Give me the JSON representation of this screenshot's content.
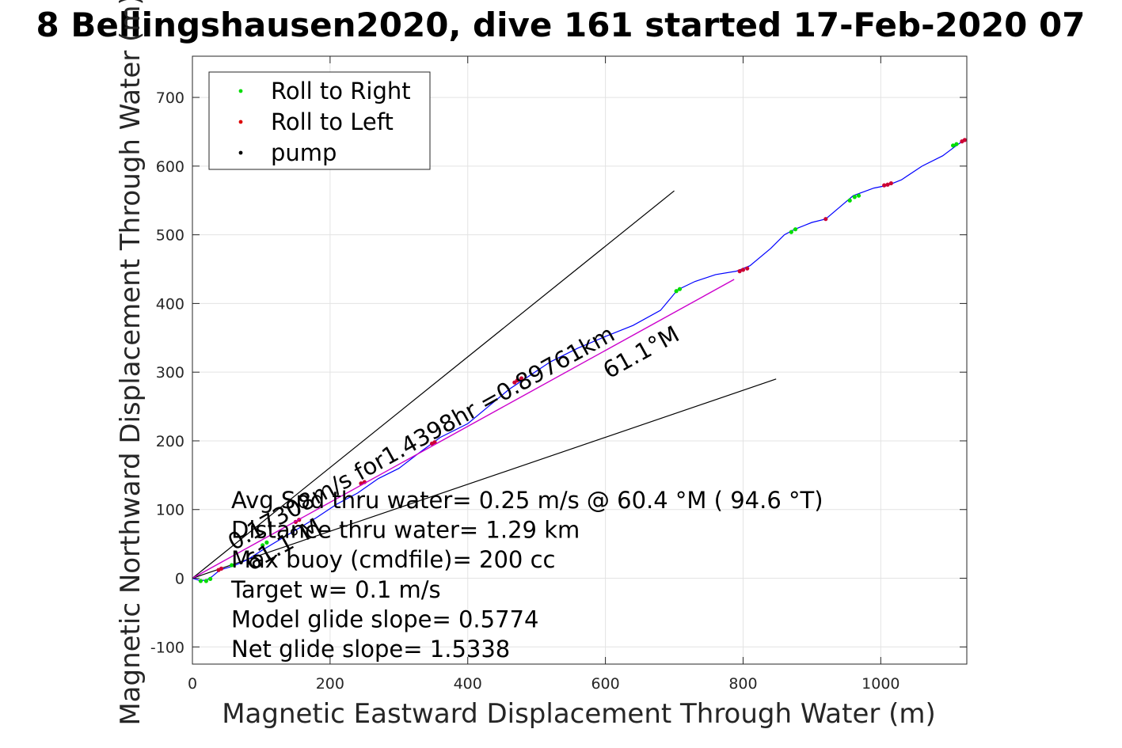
{
  "chart_data": {
    "type": "line",
    "title": "8 Bellingshausen2020, dive 161 started 17-Feb-2020 07",
    "xlabel": "Magnetic Eastward Displacement Through Water (m)",
    "ylabel": "Magnetic Northward Displacement Through Water (m)",
    "xlim": [
      0,
      1125
    ],
    "ylim": [
      -125,
      760
    ],
    "xticks": [
      0,
      200,
      400,
      600,
      800,
      1000
    ],
    "yticks": [
      -100,
      0,
      100,
      200,
      300,
      400,
      500,
      600,
      700
    ],
    "grid": true,
    "legend": {
      "placement": "top-left",
      "entries": [
        {
          "label": "Roll to Right",
          "color": "#00dd00"
        },
        {
          "label": "Roll to Left",
          "color": "#dd0000"
        },
        {
          "label": "pump",
          "color": "#000000"
        }
      ]
    },
    "colors": {
      "track": "#0000ff",
      "roll_right": "#00dd00",
      "roll_left": "#cc0033",
      "mean_line": "#cc00cc",
      "model_lines": "#000000"
    },
    "series": [
      {
        "kind": "track",
        "points": [
          [
            0,
            0
          ],
          [
            10,
            -3
          ],
          [
            20,
            -3
          ],
          [
            28,
            2
          ],
          [
            40,
            12
          ],
          [
            60,
            18
          ],
          [
            80,
            27
          ],
          [
            100,
            40
          ],
          [
            120,
            52
          ],
          [
            150,
            70
          ],
          [
            180,
            88
          ],
          [
            210,
            108
          ],
          [
            240,
            124
          ],
          [
            270,
            145
          ],
          [
            300,
            160
          ],
          [
            330,
            183
          ],
          [
            360,
            205
          ],
          [
            400,
            225
          ],
          [
            430,
            250
          ],
          [
            460,
            275
          ],
          [
            490,
            295
          ],
          [
            520,
            315
          ],
          [
            560,
            335
          ],
          [
            600,
            352
          ],
          [
            640,
            368
          ],
          [
            680,
            390
          ],
          [
            705,
            420
          ],
          [
            730,
            432
          ],
          [
            760,
            442
          ],
          [
            790,
            447
          ],
          [
            810,
            455
          ],
          [
            840,
            480
          ],
          [
            860,
            500
          ],
          [
            875,
            508
          ],
          [
            900,
            518
          ],
          [
            920,
            523
          ],
          [
            940,
            540
          ],
          [
            960,
            557
          ],
          [
            990,
            568
          ],
          [
            1010,
            572
          ],
          [
            1030,
            580
          ],
          [
            1060,
            600
          ],
          [
            1090,
            615
          ],
          [
            1110,
            630
          ],
          [
            1120,
            637
          ]
        ]
      },
      {
        "kind": "roll_right",
        "points": [
          [
            12,
            -4
          ],
          [
            20,
            -4
          ],
          [
            26,
            -1
          ],
          [
            57,
            19
          ],
          [
            102,
            48
          ],
          [
            108,
            52
          ],
          [
            703,
            418
          ],
          [
            708,
            421
          ],
          [
            870,
            504
          ],
          [
            876,
            508
          ],
          [
            955,
            550
          ],
          [
            962,
            555
          ],
          [
            968,
            557
          ],
          [
            1105,
            630
          ],
          [
            1110,
            632
          ]
        ]
      },
      {
        "kind": "roll_left",
        "points": [
          [
            38,
            12
          ],
          [
            42,
            14
          ],
          [
            150,
            82
          ],
          [
            155,
            85
          ],
          [
            245,
            138
          ],
          [
            250,
            140
          ],
          [
            348,
            196
          ],
          [
            352,
            198
          ],
          [
            468,
            285
          ],
          [
            472,
            288
          ],
          [
            478,
            291
          ],
          [
            795,
            447
          ],
          [
            800,
            449
          ],
          [
            806,
            451
          ],
          [
            920,
            523
          ],
          [
            1005,
            572
          ],
          [
            1010,
            573
          ],
          [
            1015,
            575
          ],
          [
            1118,
            636
          ],
          [
            1122,
            638
          ]
        ]
      },
      {
        "kind": "mean_line",
        "points": [
          [
            0,
            0
          ],
          [
            787,
            435
          ]
        ]
      }
    ],
    "model_lines": [
      {
        "points": [
          [
            0,
            0
          ],
          [
            700,
            564
          ]
        ]
      },
      {
        "points": [
          [
            0,
            0
          ],
          [
            848,
            290
          ]
        ]
      }
    ],
    "annotations": [
      {
        "text": "0.17308m/s for1.4398hr =0.89761km",
        "x": 60,
        "y": 40,
        "angle": -29
      },
      {
        "text": "61.1°M",
        "x": 605,
        "y": 290,
        "angle": -29
      },
      {
        "text": "61.1°M",
        "x": 85,
        "y": 10,
        "angle": -29
      }
    ],
    "stats": [
      "Avg Spd thru water=  0.25 m/s @  60.4 °M ( 94.6 °T)",
      "Distance thru water=  1.29 km",
      "Max buoy (cmdfile)= 200 cc",
      "Target w= 0.1 m/s",
      "Model glide slope= 0.5774",
      "Net glide slope= 1.5338"
    ]
  }
}
